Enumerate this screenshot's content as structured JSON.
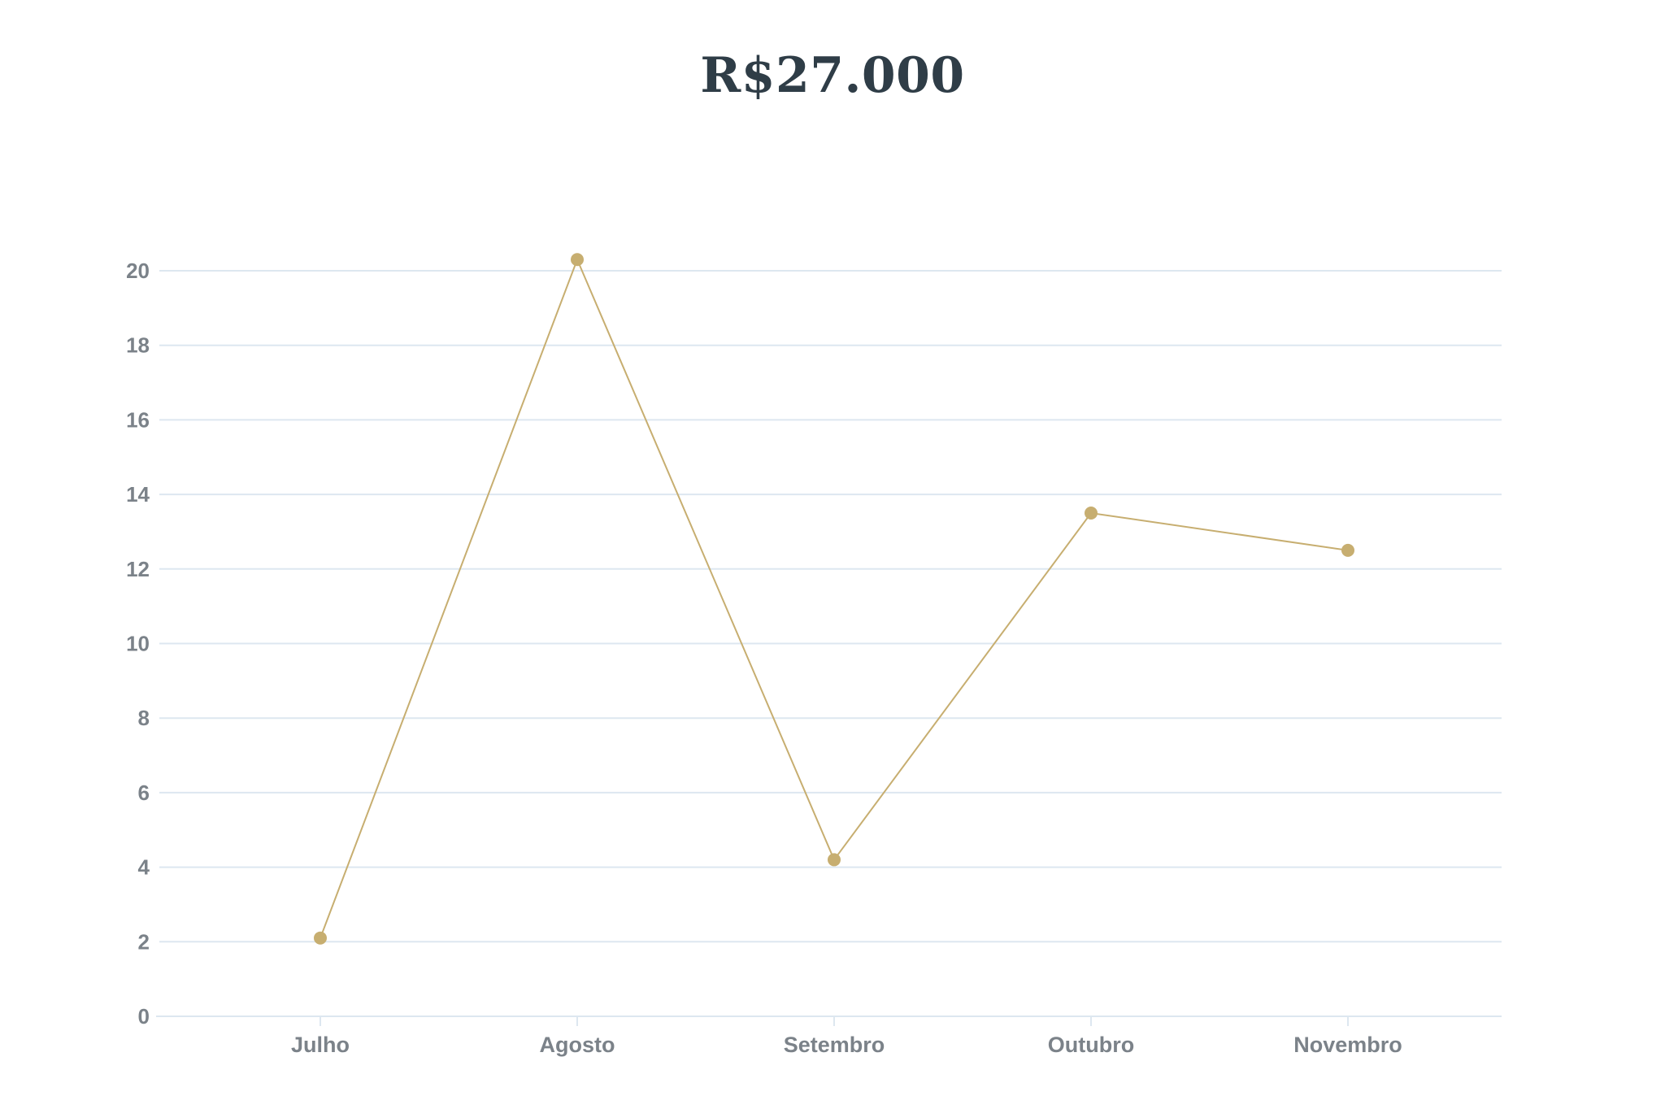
{
  "chart_data": {
    "type": "line",
    "title": "R$27.000",
    "xlabel": "",
    "ylabel": "",
    "categories": [
      "Julho",
      "Agosto",
      "Setembro",
      "Outubro",
      "Novembro"
    ],
    "series": [
      {
        "values": [
          2.1,
          20.3,
          4.2,
          13.5,
          12.5
        ]
      }
    ],
    "ylim": [
      0,
      20
    ],
    "yticks": [
      0,
      2,
      4,
      6,
      8,
      10,
      12,
      14,
      16,
      18,
      20
    ],
    "grid": true,
    "legend": "none",
    "colors": {
      "line": "#c7ae70",
      "marker": "#c7ae70",
      "grid": "#dde7f0",
      "tick_label": "#7b8289",
      "title": "#2f3d47"
    }
  }
}
